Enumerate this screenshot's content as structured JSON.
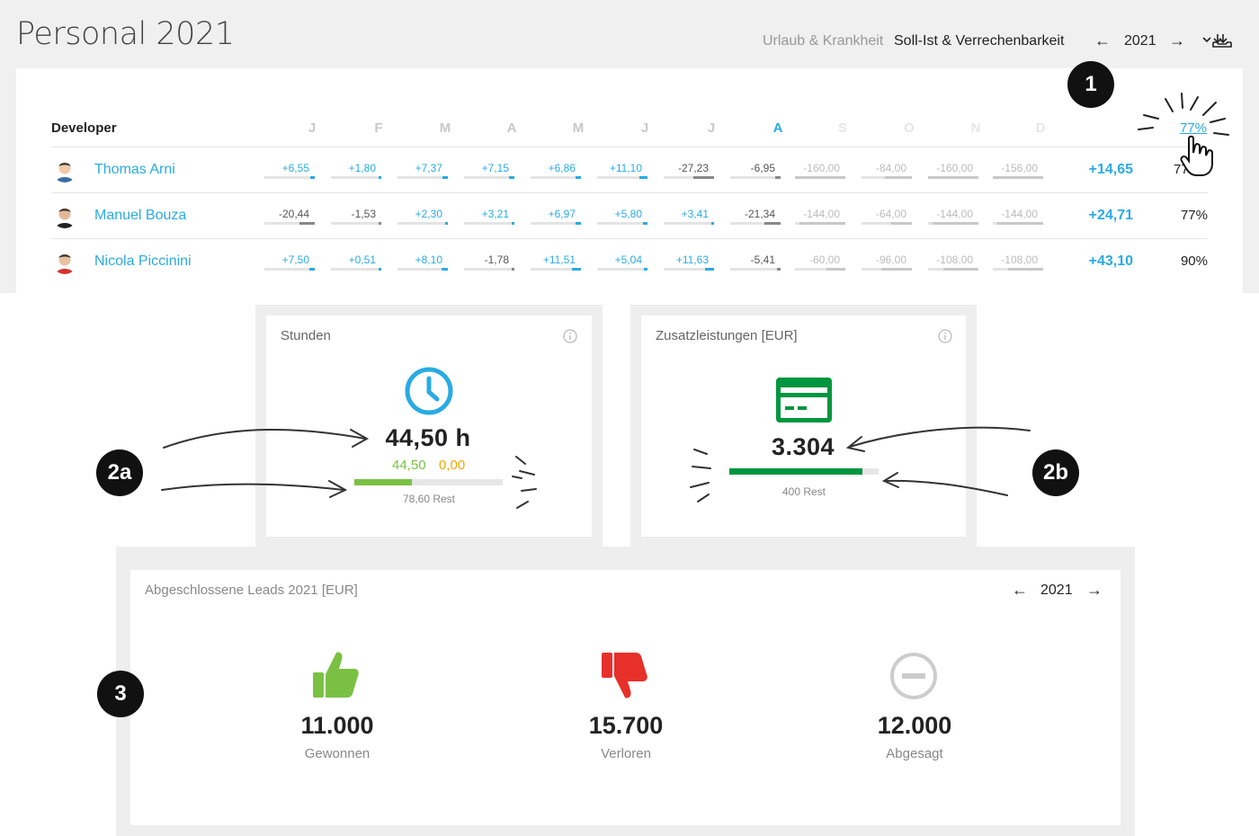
{
  "header": {
    "title": "Personal 2021",
    "tabs": [
      "Urlaub & Krankheit",
      "Soll-Ist & Verrechenbarkeit"
    ],
    "year": "2021",
    "prev_icon": "arrow-left-icon",
    "next_icon": "arrow-right-icon",
    "download_icon": "download-icon"
  },
  "table": {
    "group_label": "Developer",
    "months": [
      "J",
      "F",
      "M",
      "A",
      "M",
      "J",
      "J",
      "A",
      "S",
      "O",
      "N",
      "D"
    ],
    "current_month_index": 7,
    "header_percent": "77%",
    "rows": [
      {
        "name": "Thomas Arni",
        "values": [
          "+6,55",
          "+1,80",
          "+7,37",
          "+7,15",
          "+6,86",
          "+11,10",
          "-27,23",
          "-6,95",
          "-160,00",
          "-84,00",
          "-160,00",
          "-156,00"
        ],
        "total": "+14,65",
        "percent": "77%"
      },
      {
        "name": "Manuel Bouza",
        "values": [
          "-20,44",
          "-1,53",
          "+2,30",
          "+3,21",
          "+6,97",
          "+5,80",
          "+3,41",
          "-21,34",
          "-144,00",
          "-64,00",
          "-144,00",
          "-144,00"
        ],
        "total": "+24,71",
        "percent": "77%"
      },
      {
        "name": "Nicola Piccinini",
        "values": [
          "+7,50",
          "+0,51",
          "+8,10",
          "-1,78",
          "+11,51",
          "+5,04",
          "+11,63",
          "-5,41",
          "-60,00",
          "-96,00",
          "-108,00",
          "-108,00"
        ],
        "total": "+43,10",
        "percent": "90%"
      }
    ]
  },
  "badges": {
    "one": "1",
    "two_a": "2a",
    "two_b": "2b",
    "three": "3"
  },
  "stunden": {
    "title": "Stunden",
    "icon": "clock-icon",
    "value": "44,50 h",
    "sub_green": "44,50",
    "sub_orange": "0,00",
    "progress_fraction": 0.39,
    "rest": "78,60 Rest"
  },
  "zusatz": {
    "title": "Zusatzleistungen [EUR]",
    "icon": "credit-card-icon",
    "value": "3.304",
    "progress_fraction": 0.89,
    "rest": "400 Rest"
  },
  "leads": {
    "title": "Abgeschlossene Leads 2021 [EUR]",
    "year": "2021",
    "items": [
      {
        "value": "11.000",
        "label": "Gewonnen",
        "icon": "thumbs-up-icon",
        "color": "#7ac143"
      },
      {
        "value": "15.700",
        "label": "Verloren",
        "icon": "thumbs-down-icon",
        "color": "#e8302a"
      },
      {
        "value": "12.000",
        "label": "Abgesagt",
        "icon": "minus-circle-icon",
        "color": "#cccccc"
      }
    ]
  },
  "colors": {
    "accent": "#29abe2",
    "green_dark": "#00963f",
    "green_light": "#7ac143",
    "orange": "#f6a800",
    "red": "#e8302a"
  }
}
